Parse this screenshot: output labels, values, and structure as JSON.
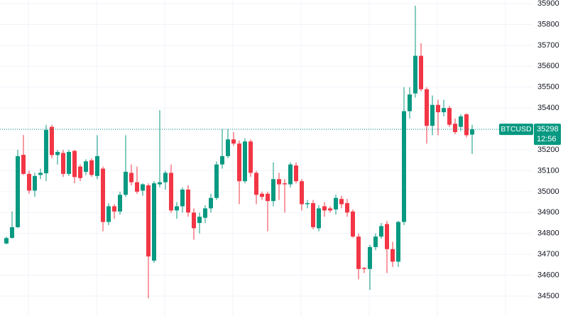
{
  "chart_data": {
    "type": "candlestick",
    "symbol": "BTCUSD",
    "last_price": 35298,
    "countdown": "12:56",
    "up_color": "#089981",
    "down_color": "#f23645",
    "ylim": [
      34405,
      35917
    ],
    "yticks": [
      34500,
      34600,
      34700,
      34800,
      34900,
      35000,
      35100,
      35200,
      35300,
      35400,
      35500,
      35600,
      35700,
      35800,
      35900
    ],
    "grid": true,
    "open": [
      34752,
      34779,
      34830,
      35176,
      35085,
      35005,
      35080,
      35088,
      35310,
      35175,
      35185,
      35085,
      35195,
      35120,
      35095,
      35150,
      35075,
      35110,
      34855,
      34930,
      34905,
      34985,
      35090,
      35045,
      35005,
      35030,
      34670,
      35035,
      35045,
      35090,
      34910,
      34930,
      35010,
      34900,
      34850,
      34875,
      34920,
      34970,
      35130,
      35170,
      35250,
      35230,
      35050,
      35240,
      35090,
      34990,
      34990,
      34955,
      35060,
      35040,
      35035,
      35125,
      35050,
      34940,
      34945,
      34825,
      34930,
      34920,
      34915,
      34965,
      34945,
      34905,
      34785,
      34635,
      34630,
      34735,
      34785,
      34845,
      34725,
      34665,
      34855,
      35385,
      35470,
      35650,
      35490,
      35315,
      35415,
      35380,
      35400,
      35325,
      35310,
      35370,
      35273
    ],
    "high": [
      34785,
      34905,
      35200,
      35271,
      35100,
      35090,
      35110,
      35320,
      35320,
      35200,
      35200,
      35200,
      35200,
      35130,
      35155,
      35160,
      35270,
      35120,
      34945,
      34940,
      35000,
      35270,
      35130,
      35120,
      35040,
      35040,
      35050,
      35390,
      35100,
      35130,
      34950,
      35020,
      35030,
      34920,
      34900,
      34935,
      34990,
      35145,
      35300,
      35300,
      35285,
      35245,
      35255,
      35250,
      35100,
      35000,
      35000,
      35140,
      35090,
      35060,
      35140,
      35140,
      35060,
      34960,
      34960,
      34935,
      34950,
      34930,
      34985,
      34980,
      34965,
      34915,
      34800,
      34640,
      34745,
      34800,
      34850,
      34860,
      34760,
      34860,
      35500,
      35500,
      35890,
      35710,
      35500,
      35460,
      35440,
      35440,
      35410,
      35350,
      35370,
      35375,
      35320
    ],
    "low": [
      34748,
      34775,
      34825,
      35080,
      34990,
      34975,
      35060,
      35050,
      35160,
      35130,
      35070,
      35075,
      35040,
      35050,
      35080,
      35070,
      35060,
      34810,
      34840,
      34870,
      34890,
      34975,
      35030,
      34990,
      34980,
      34490,
      34660,
      35020,
      35010,
      34900,
      34870,
      34900,
      34880,
      34770,
      34800,
      34850,
      34900,
      34960,
      35110,
      35160,
      35220,
      34940,
      35040,
      35070,
      34940,
      34960,
      34810,
      34930,
      34960,
      34900,
      35020,
      35040,
      34910,
      34920,
      34820,
      34810,
      34880,
      34900,
      34890,
      34920,
      34880,
      34780,
      34580,
      34610,
      34530,
      34720,
      34775,
      34610,
      34640,
      34640,
      34840,
      35350,
      35450,
      35480,
      35230,
      35270,
      35270,
      35360,
      35310,
      35275,
      35290,
      35260,
      35180
    ],
    "close": [
      34778,
      34830,
      35170,
      35085,
      35005,
      35075,
      35090,
      35295,
      35175,
      35190,
      35085,
      35190,
      35070,
      35065,
      35145,
      35080,
      35170,
      34855,
      34930,
      34905,
      34985,
      35095,
      35045,
      35000,
      35035,
      34690,
      35040,
      35045,
      35090,
      34910,
      34930,
      35010,
      34900,
      34825,
      34880,
      34920,
      34970,
      35130,
      35170,
      35250,
      35230,
      35050,
      35240,
      35090,
      34985,
      34975,
      34955,
      35060,
      35035,
      35035,
      35130,
      35050,
      34940,
      34945,
      34830,
      34920,
      34910,
      34910,
      34970,
      34940,
      34900,
      34785,
      34630,
      34630,
      34735,
      34785,
      34835,
      34725,
      34665,
      34855,
      35385,
      35465,
      35650,
      35490,
      35315,
      35415,
      35380,
      35400,
      35320,
      35285,
      35360,
      35270,
      35298
    ]
  }
}
